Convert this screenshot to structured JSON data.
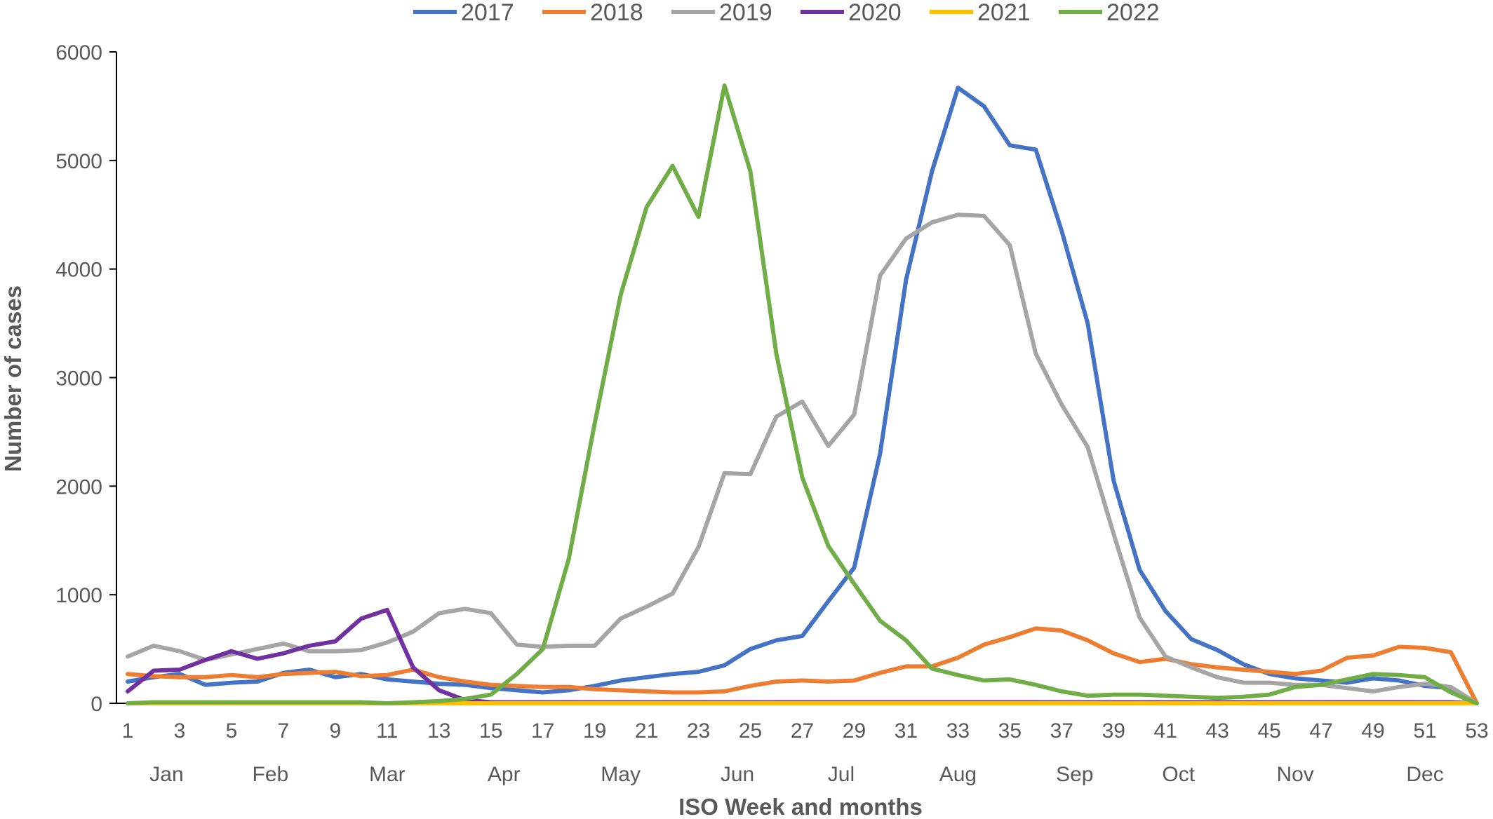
{
  "chart_data": {
    "type": "line",
    "title": "",
    "xlabel": "ISO Week and months",
    "ylabel": "Number of cases",
    "ylim": [
      0,
      6000
    ],
    "yticks": [
      0,
      1000,
      2000,
      3000,
      4000,
      5000,
      6000
    ],
    "xlim": [
      1,
      53
    ],
    "xticks": [
      1,
      3,
      5,
      7,
      9,
      11,
      13,
      15,
      17,
      19,
      21,
      23,
      25,
      27,
      29,
      31,
      33,
      35,
      37,
      39,
      41,
      43,
      45,
      47,
      49,
      51,
      53
    ],
    "months": [
      {
        "label": "Jan",
        "week": 2.5
      },
      {
        "label": "Feb",
        "week": 6.5
      },
      {
        "label": "Mar",
        "week": 11
      },
      {
        "label": "Apr",
        "week": 15.5
      },
      {
        "label": "May",
        "week": 20
      },
      {
        "label": "Jun",
        "week": 24.5
      },
      {
        "label": "Jul",
        "week": 28.5
      },
      {
        "label": "Aug",
        "week": 33
      },
      {
        "label": "Sep",
        "week": 37.5
      },
      {
        "label": "Oct",
        "week": 41.5
      },
      {
        "label": "Nov",
        "week": 46
      },
      {
        "label": "Dec",
        "week": 51
      }
    ],
    "grid": false,
    "legend_position": "top",
    "series": [
      {
        "name": "2017",
        "color": "#4472C4",
        "values": [
          200,
          240,
          270,
          170,
          190,
          200,
          280,
          310,
          240,
          270,
          220,
          200,
          180,
          170,
          140,
          120,
          100,
          120,
          160,
          210,
          240,
          270,
          290,
          350,
          500,
          580,
          620,
          940,
          1250,
          2300,
          3900,
          4900,
          5670,
          5500,
          5140,
          5100,
          4350,
          3500,
          2050,
          1230,
          850,
          590,
          490,
          360,
          270,
          230,
          210,
          190,
          230,
          210,
          160,
          140,
          0
        ]
      },
      {
        "name": "2018",
        "color": "#ED7D31",
        "values": [
          270,
          250,
          240,
          240,
          260,
          240,
          270,
          280,
          290,
          250,
          260,
          310,
          240,
          200,
          170,
          160,
          150,
          150,
          130,
          120,
          110,
          100,
          100,
          110,
          160,
          200,
          210,
          200,
          210,
          280,
          340,
          340,
          420,
          540,
          610,
          690,
          670,
          580,
          460,
          380,
          410,
          360,
          330,
          310,
          290,
          270,
          300,
          420,
          440,
          520,
          510,
          470,
          0
        ]
      },
      {
        "name": "2019",
        "color": "#A5A5A5",
        "values": [
          430,
          530,
          480,
          400,
          450,
          500,
          550,
          480,
          480,
          490,
          560,
          660,
          830,
          870,
          830,
          540,
          520,
          530,
          530,
          780,
          890,
          1010,
          1440,
          2120,
          2110,
          2640,
          2780,
          2370,
          2660,
          3940,
          4280,
          4430,
          4500,
          4490,
          4220,
          3220,
          2750,
          2360,
          1560,
          790,
          430,
          330,
          240,
          190,
          190,
          170,
          170,
          140,
          110,
          150,
          180,
          150,
          0
        ]
      },
      {
        "name": "2020",
        "color": "#7030A0",
        "values": [
          110,
          300,
          310,
          400,
          480,
          410,
          460,
          530,
          570,
          780,
          860,
          330,
          120,
          30,
          10,
          10,
          10,
          10,
          10,
          10,
          10,
          10,
          10,
          10,
          10,
          10,
          10,
          10,
          10,
          10,
          10,
          10,
          10,
          10,
          10,
          10,
          10,
          10,
          10,
          10,
          10,
          10,
          10,
          10,
          10,
          10,
          10,
          10,
          10,
          10,
          10,
          10,
          0
        ]
      },
      {
        "name": "2021",
        "color": "#FFC000",
        "values": [
          0,
          0,
          0,
          0,
          0,
          0,
          0,
          0,
          0,
          0,
          0,
          0,
          0,
          0,
          0,
          0,
          0,
          0,
          0,
          0,
          0,
          0,
          0,
          0,
          0,
          0,
          0,
          0,
          0,
          0,
          0,
          0,
          0,
          0,
          0,
          0,
          0,
          0,
          0,
          0,
          0,
          0,
          0,
          0,
          0,
          0,
          0,
          0,
          0,
          0,
          0,
          0,
          0
        ]
      },
      {
        "name": "2022",
        "color": "#70AD47",
        "values": [
          0,
          10,
          10,
          10,
          10,
          10,
          10,
          10,
          10,
          10,
          0,
          10,
          20,
          40,
          80,
          270,
          500,
          1330,
          2580,
          3760,
          4570,
          4950,
          4480,
          5690,
          4900,
          3220,
          2080,
          1450,
          1100,
          760,
          580,
          320,
          260,
          210,
          220,
          170,
          110,
          70,
          80,
          80,
          70,
          60,
          50,
          60,
          80,
          150,
          170,
          220,
          270,
          260,
          240,
          100,
          0
        ]
      }
    ]
  }
}
